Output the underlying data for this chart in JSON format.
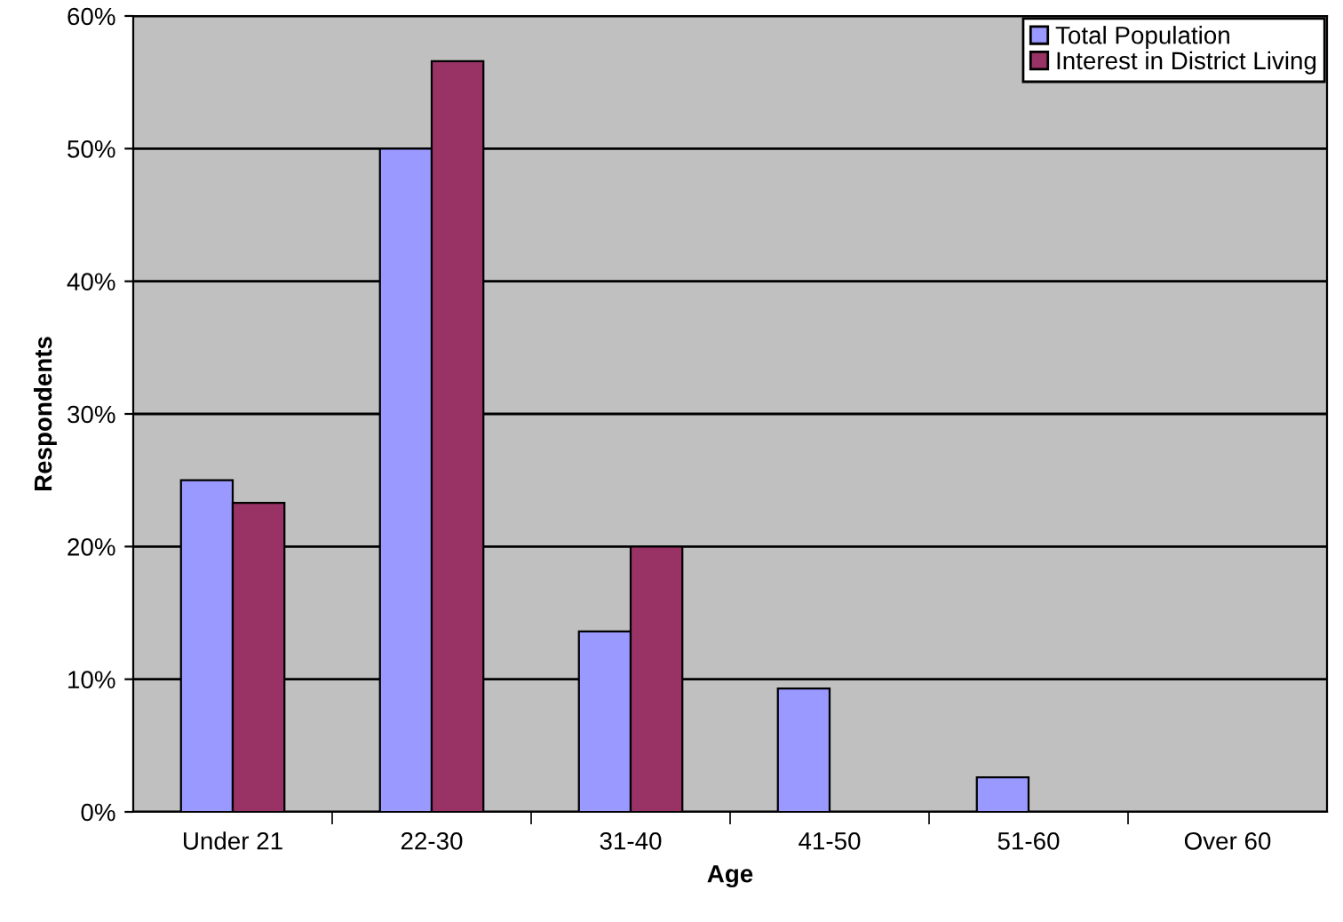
{
  "chart_data": {
    "type": "bar",
    "xlabel": "Age",
    "ylabel": "Respondents",
    "categories": [
      "Under 21",
      "22-30",
      "31-40",
      "41-50",
      "51-60",
      "Over 60"
    ],
    "series": [
      {
        "name": "Total Population",
        "color": "#9999ff",
        "values": [
          25.0,
          50.0,
          13.6,
          9.3,
          2.6,
          0
        ]
      },
      {
        "name": "Interest in District Living",
        "color": "#993366",
        "values": [
          23.3,
          56.6,
          20.0,
          0,
          0,
          0
        ]
      }
    ],
    "ylim": [
      0,
      60
    ],
    "yticks": [
      {
        "value": 0,
        "label": "0%"
      },
      {
        "value": 10,
        "label": "10%"
      },
      {
        "value": 20,
        "label": "20%"
      },
      {
        "value": 30,
        "label": "30%"
      },
      {
        "value": 40,
        "label": "40%"
      },
      {
        "value": 50,
        "label": "50%"
      },
      {
        "value": 60,
        "label": "60%"
      }
    ],
    "grid": "y",
    "legend": "top right"
  }
}
